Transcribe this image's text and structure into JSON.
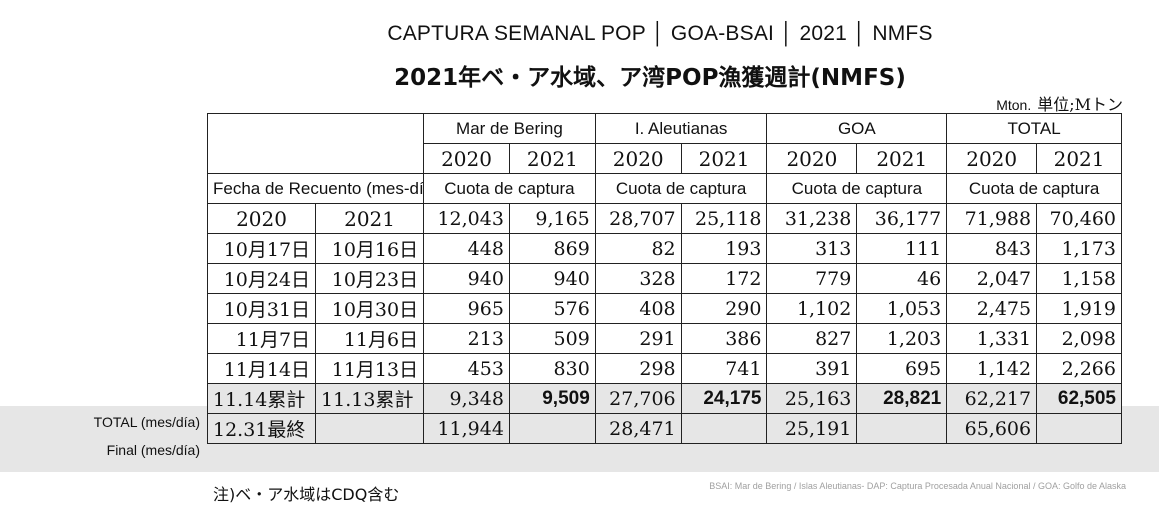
{
  "title_es": "CAPTURA SEMANAL POP │ GOA-BSAI │ 2021 │ NMFS",
  "title_jp": "2021年ベ・ア水域、ア湾POP漁獲週計(NMFS)",
  "unit_latin": "Mton.",
  "unit_jp": "単位;Mトン",
  "regions": [
    "Mar de Bering",
    "I. Aleutianas",
    "GOA",
    "TOTAL"
  ],
  "years": [
    "2020",
    "2021"
  ],
  "quota_label": "Cuota de captura",
  "fecha_label": "Fecha de Recuento (mes-día)",
  "quota": [
    "12,043",
    "9,165",
    "28,707",
    "25,118",
    "31,238",
    "36,177",
    "71,988",
    "70,460"
  ],
  "rows": [
    {
      "d2020": "10月17日",
      "d2021": "10月16日",
      "v": [
        "448",
        "869",
        "82",
        "193",
        "313",
        "111",
        "843",
        "1,173"
      ]
    },
    {
      "d2020": "10月24日",
      "d2021": "10月23日",
      "v": [
        "940",
        "940",
        "328",
        "172",
        "779",
        "46",
        "2,047",
        "1,158"
      ]
    },
    {
      "d2020": "10月31日",
      "d2021": "10月30日",
      "v": [
        "965",
        "576",
        "408",
        "290",
        "1,102",
        "1,053",
        "2,475",
        "1,919"
      ]
    },
    {
      "d2020": "11月7日",
      "d2021": "11月6日",
      "v": [
        "213",
        "509",
        "291",
        "386",
        "827",
        "1,203",
        "1,331",
        "2,098"
      ]
    },
    {
      "d2020": "11月14日",
      "d2021": "11月13日",
      "v": [
        "453",
        "830",
        "298",
        "741",
        "391",
        "695",
        "1,142",
        "2,266"
      ]
    }
  ],
  "total": {
    "label": "TOTAL (mes/día)",
    "d2020": "11.14累計",
    "d2021": "11.13累計",
    "v": [
      "9,348",
      "9,509",
      "27,706",
      "24,175",
      "25,163",
      "28,821",
      "62,217",
      "62,505"
    ]
  },
  "final": {
    "label": "Final (mes/día)",
    "d2020": "12.31最終",
    "v": [
      "11,944",
      "28,471",
      "25,191",
      "65,606"
    ]
  },
  "note_jp": "注)ベ・ア水域はCDQ含む",
  "note_src": "BSAI: Mar de Bering / Islas Aleutianas- DAP: Captura Procesada Anual Nacional / GOA: Golfo de Alaska"
}
